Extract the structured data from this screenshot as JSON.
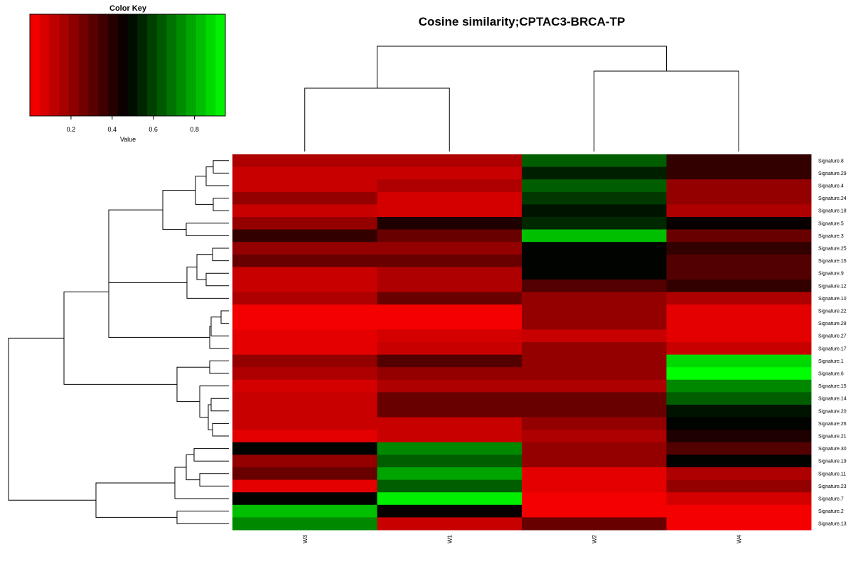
{
  "chart_data": {
    "type": "heatmap",
    "title": "Cosine similarity;CPTAC3-BRCA-TP",
    "color_key": {
      "title": "Color Key",
      "xlabel": "Value",
      "ticks": [
        "0.2",
        "0.4",
        "0.6",
        "0.8"
      ],
      "range": [
        0,
        0.95
      ],
      "low_color": "#ff0000",
      "mid_color": "#000000",
      "high_color": "#00ff00"
    },
    "columns": [
      "W3",
      "W1",
      "W2",
      "W4"
    ],
    "rows": [
      "Signature.8",
      "Signature.29",
      "Signature.4",
      "Signature.24",
      "Signature.18",
      "Signature.5",
      "Signature.3",
      "Signature.25",
      "Signature.16",
      "Signature.9",
      "Signature.12",
      "Signature.10",
      "Signature.22",
      "Signature.28",
      "Signature.27",
      "Signature.17",
      "Signature.1",
      "Signature.6",
      "Signature.15",
      "Signature.14",
      "Signature.20",
      "Signature.26",
      "Signature.21",
      "Signature.30",
      "Signature.19",
      "Signature.11",
      "Signature.23",
      "Signature.7",
      "Signature.2",
      "Signature.13"
    ],
    "values": [
      [
        0.15,
        0.15,
        0.65,
        0.38
      ],
      [
        0.1,
        0.1,
        0.53,
        0.38
      ],
      [
        0.1,
        0.15,
        0.65,
        0.2
      ],
      [
        0.2,
        0.08,
        0.58,
        0.2
      ],
      [
        0.1,
        0.08,
        0.51,
        0.15
      ],
      [
        0.2,
        0.42,
        0.55,
        0.46
      ],
      [
        0.38,
        0.28,
        0.83,
        0.28
      ],
      [
        0.2,
        0.2,
        0.48,
        0.38
      ],
      [
        0.28,
        0.28,
        0.48,
        0.32
      ],
      [
        0.1,
        0.15,
        0.48,
        0.32
      ],
      [
        0.1,
        0.15,
        0.32,
        0.38
      ],
      [
        0.15,
        0.28,
        0.2,
        0.15
      ],
      [
        0.02,
        0.02,
        0.2,
        0.05
      ],
      [
        0.02,
        0.02,
        0.2,
        0.05
      ],
      [
        0.05,
        0.08,
        0.1,
        0.05
      ],
      [
        0.05,
        0.1,
        0.2,
        0.1
      ],
      [
        0.2,
        0.32,
        0.2,
        0.88
      ],
      [
        0.15,
        0.2,
        0.2,
        0.95
      ],
      [
        0.08,
        0.15,
        0.15,
        0.73
      ],
      [
        0.1,
        0.28,
        0.28,
        0.65
      ],
      [
        0.1,
        0.28,
        0.28,
        0.51
      ],
      [
        0.1,
        0.1,
        0.2,
        0.48
      ],
      [
        0.05,
        0.1,
        0.15,
        0.42
      ],
      [
        0.48,
        0.73,
        0.2,
        0.32
      ],
      [
        0.2,
        0.65,
        0.2,
        0.48
      ],
      [
        0.28,
        0.78,
        0.05,
        0.15
      ],
      [
        0.05,
        0.65,
        0.05,
        0.2
      ],
      [
        0.48,
        0.92,
        0.02,
        0.08
      ],
      [
        0.83,
        0.46,
        0.02,
        0.02
      ],
      [
        0.73,
        0.1,
        0.28,
        0.02
      ]
    ]
  }
}
